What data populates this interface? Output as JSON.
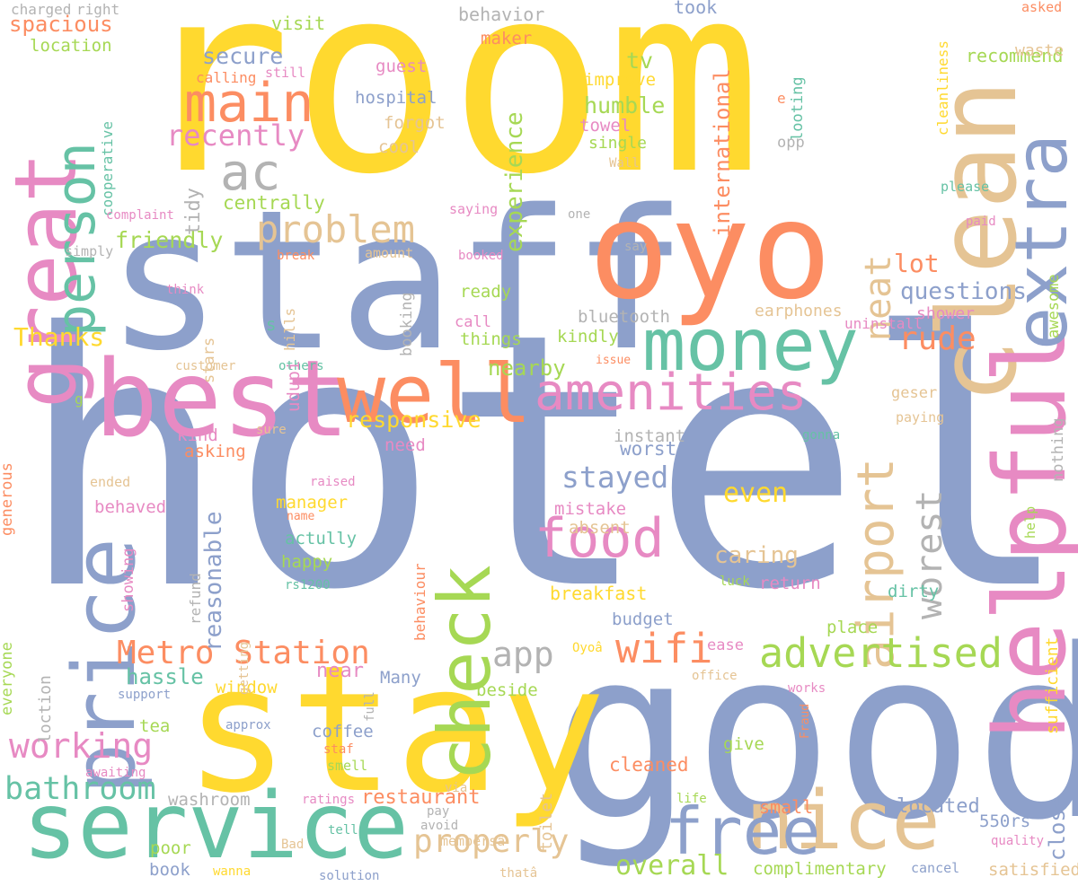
{
  "colors": {
    "blue": "#8da0cb",
    "yellow": "#ffd92f",
    "orange": "#fc8d62",
    "teal": "#66c2a5",
    "pink": "#e78ac3",
    "green": "#a6d854",
    "tan": "#e5c494",
    "gray": "#b3b3b3"
  },
  "words": [
    {
      "text": "room",
      "color": "yellow"
    },
    {
      "text": "hotel",
      "color": "blue"
    },
    {
      "text": "staff",
      "color": "blue"
    },
    {
      "text": "good",
      "color": "blue"
    },
    {
      "text": "stay",
      "color": "yellow"
    },
    {
      "text": "oyo",
      "color": "orange"
    },
    {
      "text": "service",
      "color": "teal"
    },
    {
      "text": "clean",
      "color": "tan"
    },
    {
      "text": "best",
      "color": "pink"
    },
    {
      "text": "money",
      "color": "teal"
    },
    {
      "text": "great",
      "color": "pink"
    },
    {
      "text": "price",
      "color": "blue"
    },
    {
      "text": "check",
      "color": "green"
    },
    {
      "text": "helpful",
      "color": "pink"
    },
    {
      "text": "extra",
      "color": "blue"
    },
    {
      "text": "nice",
      "color": "tan"
    },
    {
      "text": "free",
      "color": "blue"
    },
    {
      "text": "well",
      "color": "orange"
    },
    {
      "text": "food",
      "color": "pink"
    },
    {
      "text": "amenities",
      "color": "pink"
    },
    {
      "text": "airport",
      "color": "tan"
    },
    {
      "text": "person",
      "color": "teal"
    },
    {
      "text": "main",
      "color": "orange"
    },
    {
      "text": "ac",
      "color": "gray"
    },
    {
      "text": "advertised",
      "color": "green"
    },
    {
      "text": "Metro Station",
      "color": "orange"
    },
    {
      "text": "wifi",
      "color": "orange"
    },
    {
      "text": "worest",
      "color": "gray"
    },
    {
      "text": "neat",
      "color": "tan"
    },
    {
      "text": "problem",
      "color": "tan"
    },
    {
      "text": "working",
      "color": "pink"
    },
    {
      "text": "bathroom",
      "color": "teal"
    },
    {
      "text": "app",
      "color": "gray"
    },
    {
      "text": "properly",
      "color": "tan"
    },
    {
      "text": "recently",
      "color": "pink"
    },
    {
      "text": "experience",
      "color": "green"
    },
    {
      "text": "reasonable",
      "color": "blue"
    },
    {
      "text": "stayed",
      "color": "blue"
    },
    {
      "text": "rude",
      "color": "orange"
    },
    {
      "text": "overall",
      "color": "green"
    },
    {
      "text": "questions",
      "color": "blue"
    },
    {
      "text": "lot",
      "color": "orange"
    },
    {
      "text": "even",
      "color": "yellow"
    },
    {
      "text": "international",
      "color": "orange"
    },
    {
      "text": "spacious",
      "color": "orange"
    },
    {
      "text": "secure",
      "color": "blue"
    },
    {
      "text": "humble",
      "color": "green"
    },
    {
      "text": "tv",
      "color": "green"
    },
    {
      "text": "responsive",
      "color": "yellow"
    },
    {
      "text": "Thanks",
      "color": "yellow"
    },
    {
      "text": "friendly",
      "color": "green"
    },
    {
      "text": "nearby",
      "color": "green"
    },
    {
      "text": "located",
      "color": "blue"
    },
    {
      "text": "worst",
      "color": "blue"
    },
    {
      "text": "hassle",
      "color": "teal"
    },
    {
      "text": "caring",
      "color": "tan"
    },
    {
      "text": "near",
      "color": "pink"
    },
    {
      "text": "restaurant",
      "color": "orange"
    },
    {
      "text": "cleaned",
      "color": "orange"
    },
    {
      "text": "centrally",
      "color": "green"
    },
    {
      "text": "tidy",
      "color": "gray"
    },
    {
      "text": "awesome",
      "color": "green"
    },
    {
      "text": "close",
      "color": "blue"
    },
    {
      "text": "toilet",
      "color": "tan"
    },
    {
      "text": "recommend",
      "color": "green"
    },
    {
      "text": "breakfast",
      "color": "yellow"
    },
    {
      "text": "small",
      "color": "orange"
    },
    {
      "text": "complimentary",
      "color": "green"
    },
    {
      "text": "satisfied",
      "color": "tan"
    },
    {
      "text": "generous",
      "color": "orange"
    },
    {
      "text": "everyone",
      "color": "green"
    },
    {
      "text": "cleanliness",
      "color": "yellow"
    },
    {
      "text": "sufficient",
      "color": "yellow"
    },
    {
      "text": "nothing",
      "color": "gray"
    },
    {
      "text": "behavior",
      "color": "gray"
    },
    {
      "text": "took",
      "color": "blue"
    },
    {
      "text": "charged",
      "color": "gray"
    },
    {
      "text": "right",
      "color": "gray"
    },
    {
      "text": "asked",
      "color": "orange"
    },
    {
      "text": "visit",
      "color": "green"
    },
    {
      "text": "location",
      "color": "green"
    },
    {
      "text": "maker",
      "color": "orange"
    },
    {
      "text": "waste",
      "color": "tan"
    },
    {
      "text": "guest",
      "color": "pink"
    },
    {
      "text": "improve",
      "color": "yellow"
    },
    {
      "text": "calling",
      "color": "orange"
    },
    {
      "text": "still",
      "color": "pink"
    },
    {
      "text": "hospital",
      "color": "blue"
    },
    {
      "text": "forgot",
      "color": "tan"
    },
    {
      "text": "towel",
      "color": "pink"
    },
    {
      "text": "cool",
      "color": "tan"
    },
    {
      "text": "single",
      "color": "green"
    },
    {
      "text": "looting",
      "color": "teal"
    },
    {
      "text": "e",
      "color": "orange"
    },
    {
      "text": "opp",
      "color": "gray"
    },
    {
      "text": "Wall",
      "color": "tan"
    },
    {
      "text": "please",
      "color": "teal"
    },
    {
      "text": "cooperative",
      "color": "teal"
    },
    {
      "text": "complaint",
      "color": "pink"
    },
    {
      "text": "saying",
      "color": "pink"
    },
    {
      "text": "one",
      "color": "gray"
    },
    {
      "text": "paid",
      "color": "pink"
    },
    {
      "text": "simply",
      "color": "gray"
    },
    {
      "text": "break",
      "color": "orange"
    },
    {
      "text": "amount",
      "color": "tan"
    },
    {
      "text": "booked",
      "color": "pink"
    },
    {
      "text": "say",
      "color": "gray"
    },
    {
      "text": "think",
      "color": "pink"
    },
    {
      "text": "ready",
      "color": "green"
    },
    {
      "text": "booking",
      "color": "gray"
    },
    {
      "text": "bluetooth",
      "color": "gray"
    },
    {
      "text": "earphones",
      "color": "tan"
    },
    {
      "text": "shower",
      "color": "pink"
    },
    {
      "text": "stars",
      "color": "tan"
    },
    {
      "text": "hills",
      "color": "tan"
    },
    {
      "text": "s",
      "color": "teal"
    },
    {
      "text": "call",
      "color": "pink"
    },
    {
      "text": "things",
      "color": "green"
    },
    {
      "text": "kindly",
      "color": "green"
    },
    {
      "text": "uninstall",
      "color": "pink"
    },
    {
      "text": "customer",
      "color": "tan"
    },
    {
      "text": "others",
      "color": "teal"
    },
    {
      "text": "issue",
      "color": "orange"
    },
    {
      "text": "g",
      "color": "green"
    },
    {
      "text": "udupi",
      "color": "pink"
    },
    {
      "text": "geser",
      "color": "tan"
    },
    {
      "text": "kind",
      "color": "pink"
    },
    {
      "text": "sure",
      "color": "tan"
    },
    {
      "text": "need",
      "color": "pink"
    },
    {
      "text": "paying",
      "color": "tan"
    },
    {
      "text": "instant",
      "color": "gray"
    },
    {
      "text": "asking",
      "color": "orange"
    },
    {
      "text": "gonna",
      "color": "teal"
    },
    {
      "text": "ended",
      "color": "tan"
    },
    {
      "text": "raised",
      "color": "pink"
    },
    {
      "text": "help",
      "color": "green"
    },
    {
      "text": "behaved",
      "color": "pink"
    },
    {
      "text": "manager",
      "color": "yellow"
    },
    {
      "text": "mistake",
      "color": "pink"
    },
    {
      "text": "name",
      "color": "orange"
    },
    {
      "text": "absent",
      "color": "tan"
    },
    {
      "text": "actully",
      "color": "teal"
    },
    {
      "text": "showing",
      "color": "pink"
    },
    {
      "text": "refund",
      "color": "gray"
    },
    {
      "text": "happy",
      "color": "green"
    },
    {
      "text": "rs1200",
      "color": "teal"
    },
    {
      "text": "luck",
      "color": "green"
    },
    {
      "text": "return",
      "color": "pink"
    },
    {
      "text": "dirty",
      "color": "teal"
    },
    {
      "text": "behaviour",
      "color": "orange"
    },
    {
      "text": "budget",
      "color": "blue"
    },
    {
      "text": "place",
      "color": "green"
    },
    {
      "text": "ease",
      "color": "pink"
    },
    {
      "text": "Oyoâ",
      "color": "yellow"
    },
    {
      "text": "Many",
      "color": "blue"
    },
    {
      "text": "window",
      "color": "yellow"
    },
    {
      "text": "beside",
      "color": "green"
    },
    {
      "text": "getting",
      "color": "tan"
    },
    {
      "text": "office",
      "color": "tan"
    },
    {
      "text": "support",
      "color": "blue"
    },
    {
      "text": "loction",
      "color": "gray"
    },
    {
      "text": "full",
      "color": "gray"
    },
    {
      "text": "works",
      "color": "pink"
    },
    {
      "text": "approx",
      "color": "blue"
    },
    {
      "text": "tea",
      "color": "green"
    },
    {
      "text": "coffee",
      "color": "blue"
    },
    {
      "text": "give",
      "color": "green"
    },
    {
      "text": "Fraud",
      "color": "orange"
    },
    {
      "text": "staf",
      "color": "orange"
    },
    {
      "text": "smell",
      "color": "green"
    },
    {
      "text": "awaiting",
      "color": "pink"
    },
    {
      "text": "washroom",
      "color": "gray"
    },
    {
      "text": "ratings",
      "color": "pink"
    },
    {
      "text": "via",
      "color": "tan"
    },
    {
      "text": "life",
      "color": "green"
    },
    {
      "text": "pay",
      "color": "gray"
    },
    {
      "text": "550rs",
      "color": "blue"
    },
    {
      "text": "avoid",
      "color": "gray"
    },
    {
      "text": "membersâ",
      "color": "tan"
    },
    {
      "text": "tell",
      "color": "teal"
    },
    {
      "text": "poor",
      "color": "green"
    },
    {
      "text": "Bad",
      "color": "tan"
    },
    {
      "text": "quality",
      "color": "pink"
    },
    {
      "text": "book",
      "color": "blue"
    },
    {
      "text": "wanna",
      "color": "yellow"
    },
    {
      "text": "solution",
      "color": "blue"
    },
    {
      "text": "thatâ",
      "color": "tan"
    },
    {
      "text": "cancel",
      "color": "blue"
    }
  ]
}
